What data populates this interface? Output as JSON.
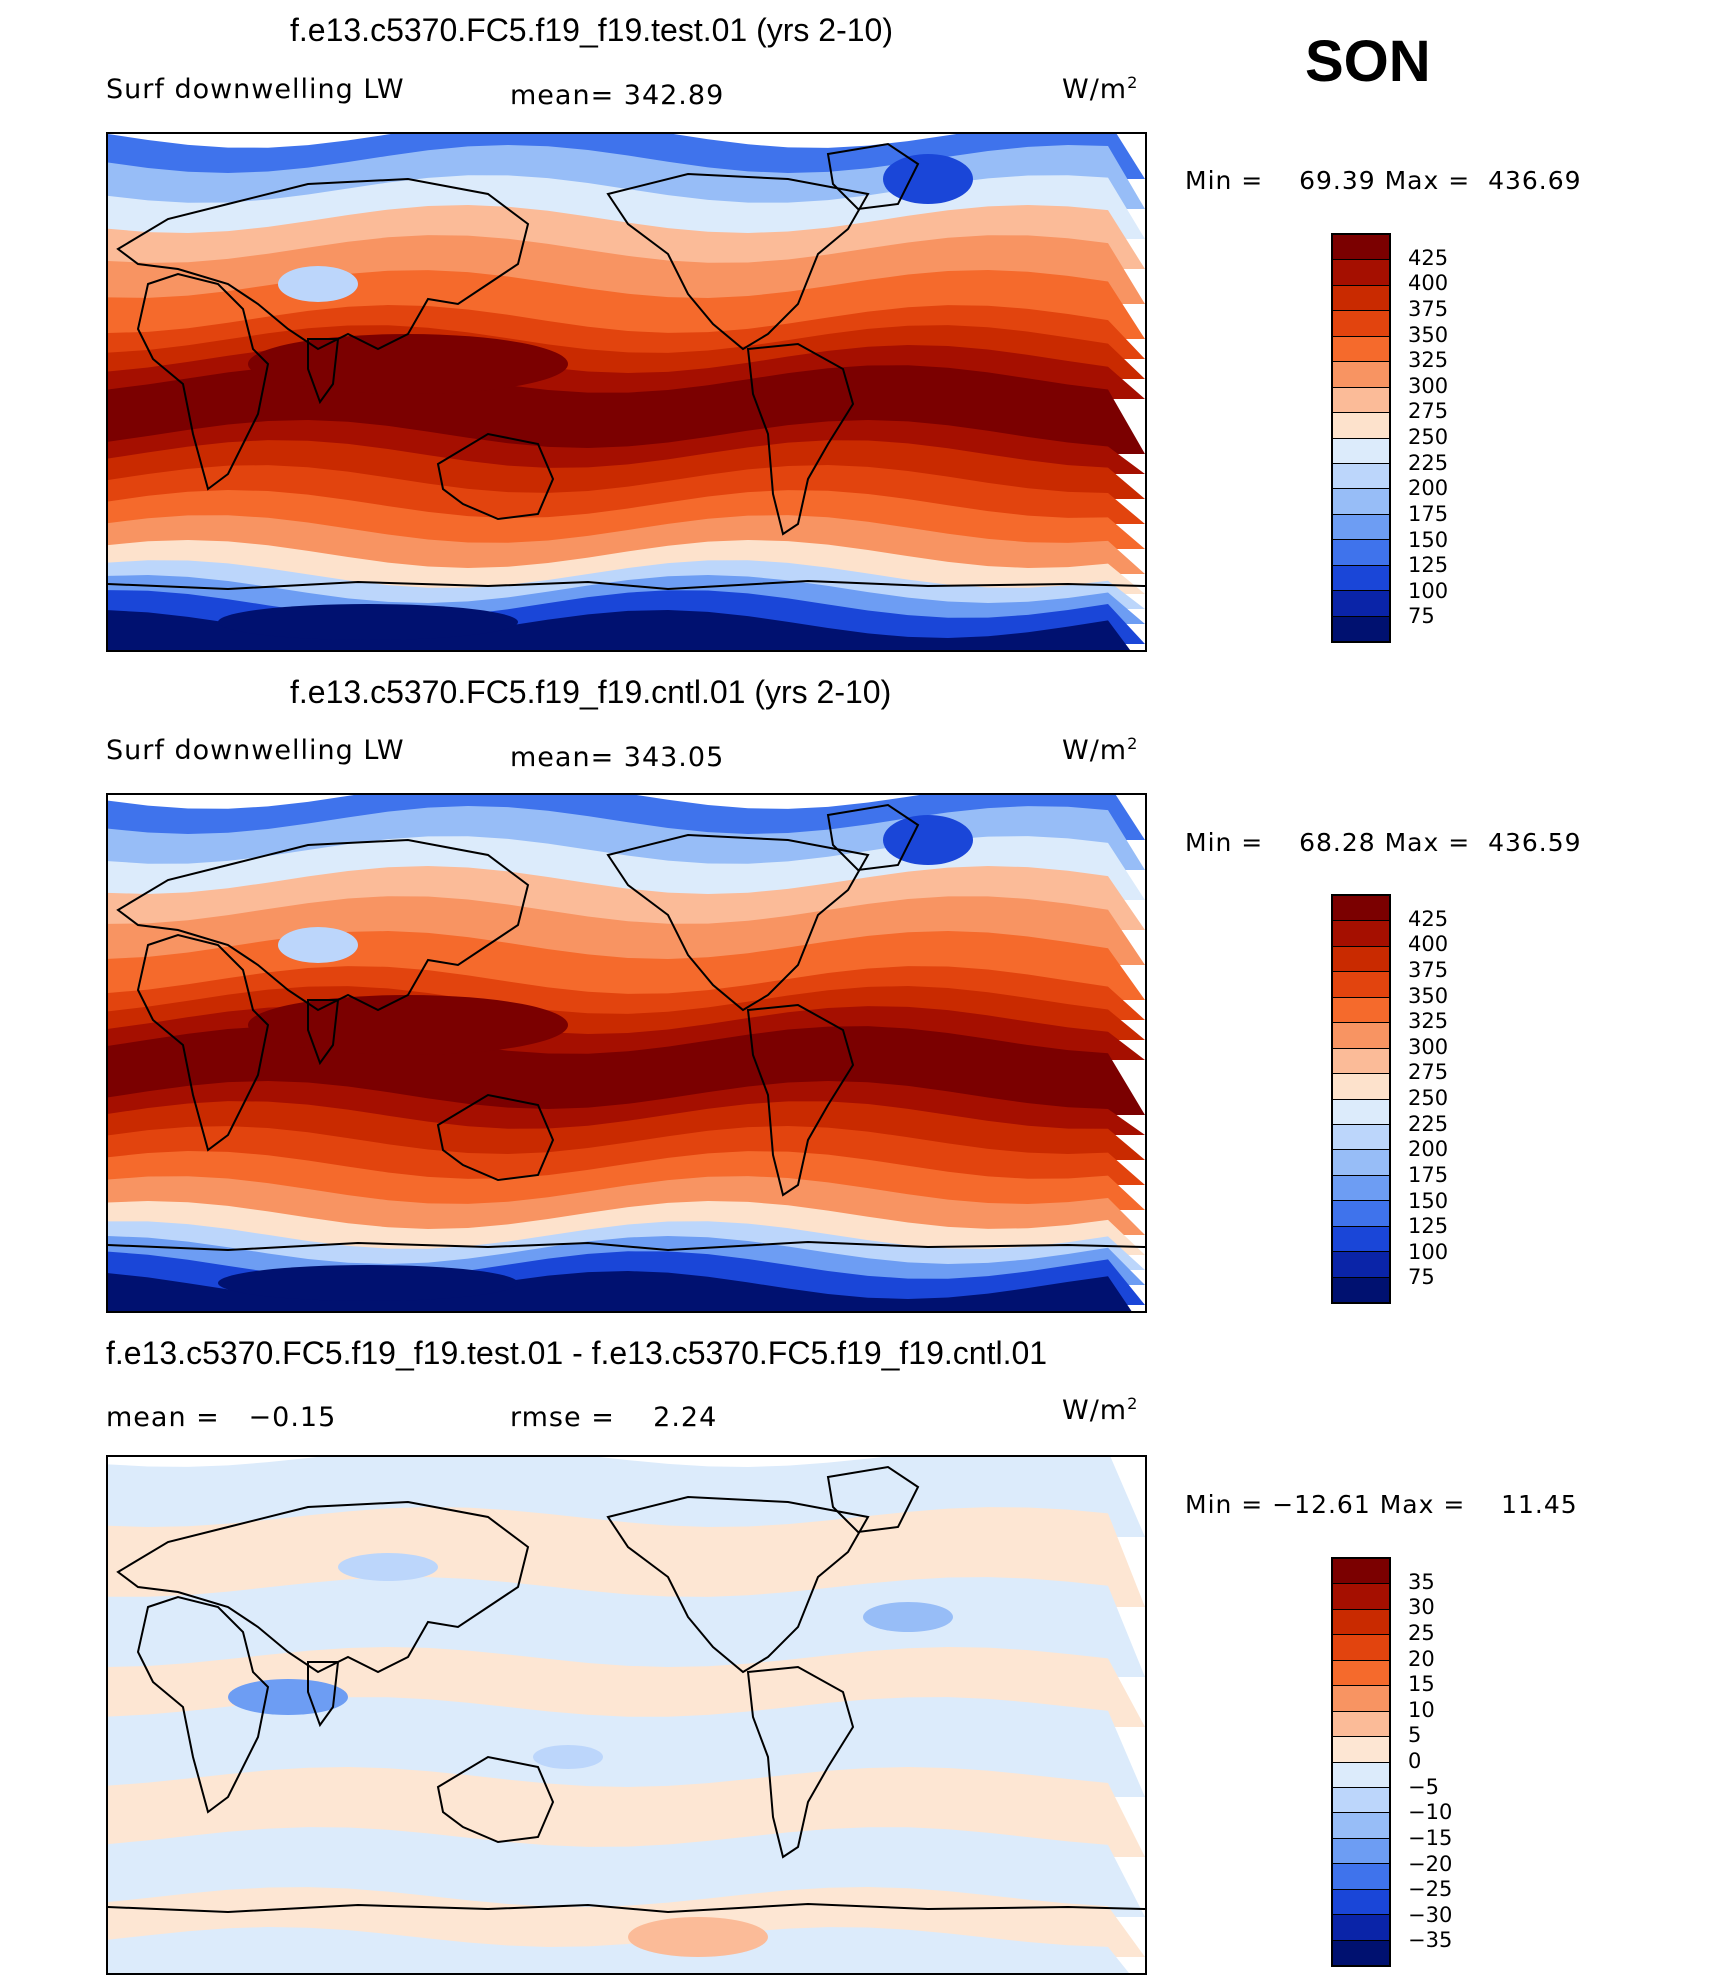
{
  "season": "SON",
  "panels": [
    {
      "title": "f.e13.c5370.FC5.f19_f19.test.01 (yrs 2-10)",
      "variable": "Surf downwelling LW",
      "stat": "mean= 342.89",
      "units": "W/m",
      "units_sup": "2",
      "min_label": "Min =",
      "min_value": "69.39",
      "max_label": "Max =",
      "max_value": "436.69",
      "type": "abs",
      "colorbar_labels": [
        "425",
        "400",
        "375",
        "350",
        "325",
        "300",
        "275",
        "250",
        "225",
        "200",
        "175",
        "150",
        "125",
        "100",
        "75"
      ]
    },
    {
      "title": "f.e13.c5370.FC5.f19_f19.cntl.01 (yrs 2-10)",
      "variable": "Surf downwelling LW",
      "stat": "mean= 343.05",
      "units": "W/m",
      "units_sup": "2",
      "min_label": "Min =",
      "min_value": "68.28",
      "max_label": "Max =",
      "max_value": "436.59",
      "type": "abs",
      "colorbar_labels": [
        "425",
        "400",
        "375",
        "350",
        "325",
        "300",
        "275",
        "250",
        "225",
        "200",
        "175",
        "150",
        "125",
        "100",
        "75"
      ]
    },
    {
      "title": "f.e13.c5370.FC5.f19_f19.test.01 - f.e13.c5370.FC5.f19_f19.cntl.01",
      "variable": "mean =   −0.15",
      "stat": "rmse =    2.24",
      "units": "W/m",
      "units_sup": "2",
      "min_label": "Min =",
      "min_value": "−12.61",
      "max_label": "Max =",
      "max_value": "11.45",
      "type": "diff",
      "colorbar_labels": [
        "35",
        "30",
        "25",
        "20",
        "15",
        "10",
        "5",
        "0",
        "−5",
        "−10",
        "−15",
        "−20",
        "−25",
        "−30",
        "−35"
      ]
    }
  ],
  "colors": {
    "abs_palette": [
      "#7b0000",
      "#a50f00",
      "#c92a00",
      "#e2440e",
      "#f56a2c",
      "#f89462",
      "#fbbb98",
      "#fde2cc",
      "#dcebfb",
      "#bcd6fb",
      "#97bdf7",
      "#6d9df3",
      "#3f73ec",
      "#1a46d8",
      "#0a24a8",
      "#001170"
    ],
    "diff_palette": [
      "#7b0000",
      "#a50f00",
      "#c92a00",
      "#e2440e",
      "#f56a2c",
      "#f89462",
      "#fbbb98",
      "#fde6d3",
      "#dcebfb",
      "#bcd6fb",
      "#97bdf7",
      "#6d9df3",
      "#3f73ec",
      "#1a46d8",
      "#0a24a8",
      "#001170"
    ],
    "coastline": "#000000"
  }
}
